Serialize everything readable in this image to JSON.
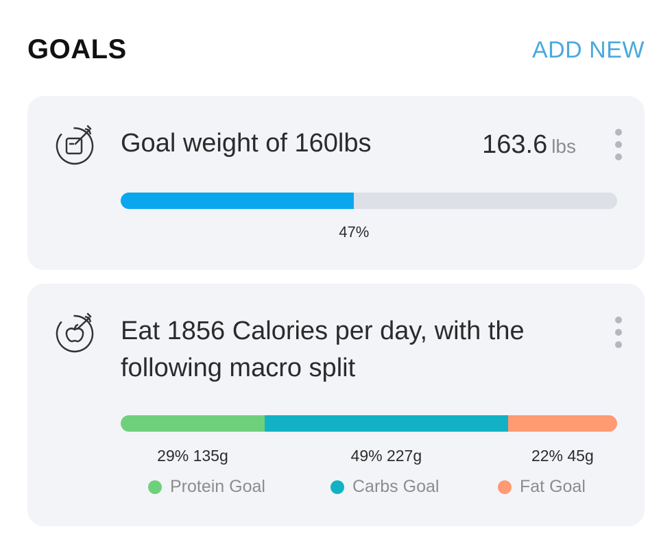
{
  "header": {
    "title": "GOALS",
    "add_new": "ADD NEW"
  },
  "weight_goal": {
    "icon": "target-scale-icon",
    "text": "Goal weight of 160lbs",
    "current_value": "163.6",
    "current_unit": "lbs",
    "progress_percent": 47,
    "progress_label": "47%",
    "bar_color": "#0aa7ef"
  },
  "calorie_goal": {
    "icon": "target-apple-icon",
    "text": "Eat 1856 Calories per day, with the following macro split",
    "macros": [
      {
        "name": "Protein Goal",
        "percent": 29,
        "label": "29% 135g",
        "color": "#6fd07c"
      },
      {
        "name": "Carbs Goal",
        "percent": 49,
        "label": "49% 227g",
        "color": "#12b2c4"
      },
      {
        "name": "Fat Goal",
        "percent": 22,
        "label": "22% 45g",
        "color": "#ff9a72"
      }
    ]
  }
}
